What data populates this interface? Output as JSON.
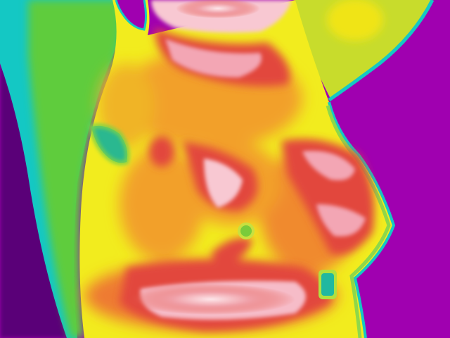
{
  "image": {
    "kind": "thermal-infrared-photograph",
    "palette": {
      "background_cold": "#a000b0",
      "cool": "#10c8c0",
      "mild": "#9cd43a",
      "warm": "#f0f020",
      "hot": "#e24a3a",
      "hottest": "#fbd6de"
    }
  }
}
